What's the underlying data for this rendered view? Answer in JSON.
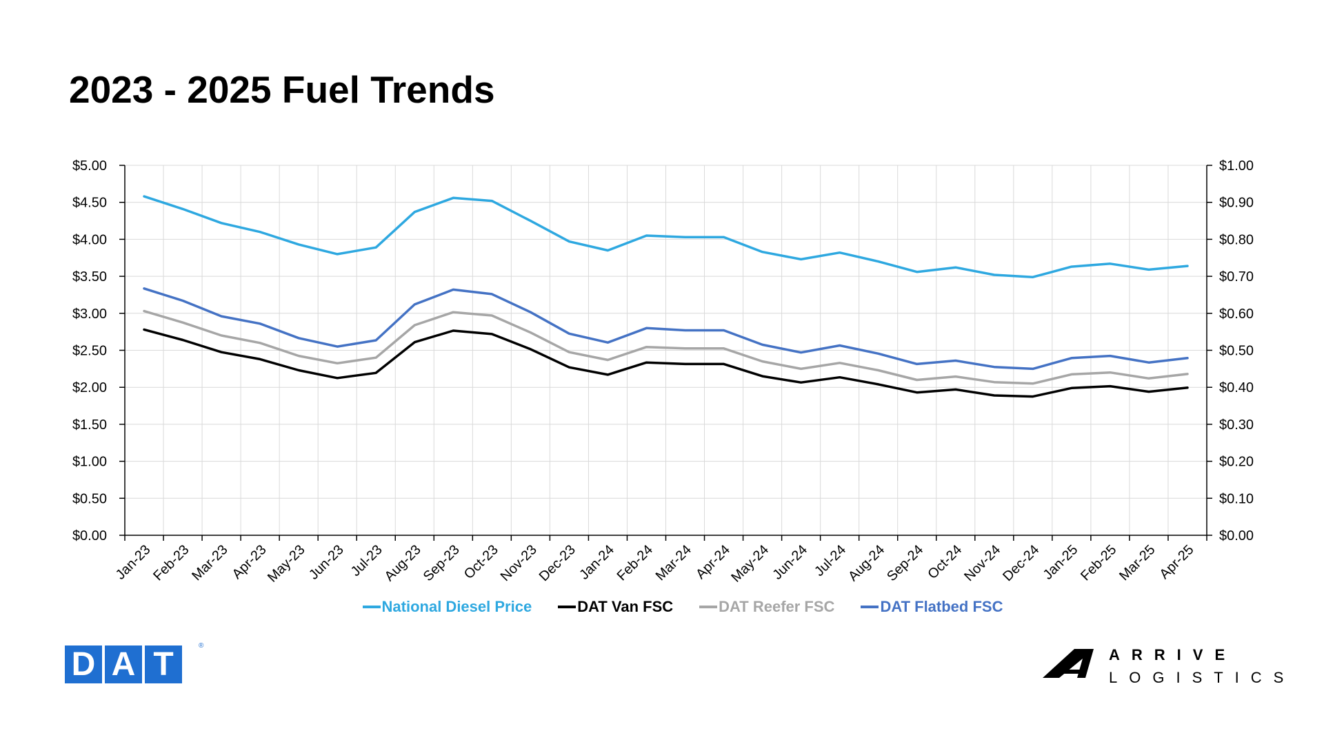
{
  "title": "2023 - 2025 Fuel Trends",
  "colors": {
    "diesel": "#2ea8e0",
    "van": "#000000",
    "reefer": "#a6a6a6",
    "flatbed": "#4472c4",
    "dat_blue": "#1f6fd1",
    "grid": "#d9d9d9"
  },
  "chart_data": {
    "type": "line",
    "title": "2023 - 2025 Fuel Trends",
    "categories": [
      "Jan-23",
      "Feb-23",
      "Mar-23",
      "Apr-23",
      "May-23",
      "Jun-23",
      "Jul-23",
      "Aug-23",
      "Sep-23",
      "Oct-23",
      "Nov-23",
      "Dec-23",
      "Jan-24",
      "Feb-24",
      "Mar-24",
      "Apr-24",
      "May-24",
      "Jun-24",
      "Jul-24",
      "Aug-24",
      "Sep-24",
      "Oct-24",
      "Nov-24",
      "Dec-24",
      "Jan-25",
      "Feb-25",
      "Mar-25",
      "Apr-25"
    ],
    "y_left": {
      "min": 0,
      "max": 5,
      "ticks": [
        "$0.00",
        "$0.50",
        "$1.00",
        "$1.50",
        "$2.00",
        "$2.50",
        "$3.00",
        "$3.50",
        "$4.00",
        "$4.50",
        "$5.00"
      ]
    },
    "y_right": {
      "min": 0,
      "max": 1,
      "ticks": [
        "$0.00",
        "$0.10",
        "$0.20",
        "$0.30",
        "$0.40",
        "$0.50",
        "$0.60",
        "$0.70",
        "$0.80",
        "$0.90",
        "$1.00"
      ]
    },
    "grid": true,
    "legend_position": "bottom",
    "series": [
      {
        "name": "National Diesel Price",
        "axis": "left",
        "color": "#2ea8e0",
        "values": [
          4.58,
          4.41,
          4.22,
          4.1,
          3.93,
          3.8,
          3.89,
          4.37,
          4.56,
          4.52,
          4.25,
          3.97,
          3.85,
          4.05,
          4.03,
          4.03,
          3.83,
          3.73,
          3.82,
          3.7,
          3.56,
          3.62,
          3.52,
          3.49,
          3.63,
          3.67,
          3.59,
          3.64
        ]
      },
      {
        "name": "DAT Van FSC",
        "axis": "right",
        "color": "#000000",
        "values": [
          0.556,
          0.528,
          0.495,
          0.476,
          0.446,
          0.425,
          0.439,
          0.522,
          0.553,
          0.544,
          0.503,
          0.454,
          0.434,
          0.467,
          0.463,
          0.463,
          0.43,
          0.413,
          0.427,
          0.408,
          0.386,
          0.394,
          0.378,
          0.375,
          0.398,
          0.403,
          0.388,
          0.399
        ]
      },
      {
        "name": "DAT Reefer FSC",
        "axis": "right",
        "color": "#a6a6a6",
        "values": [
          0.606,
          0.575,
          0.54,
          0.52,
          0.485,
          0.465,
          0.48,
          0.568,
          0.603,
          0.594,
          0.548,
          0.495,
          0.474,
          0.509,
          0.505,
          0.505,
          0.47,
          0.45,
          0.466,
          0.446,
          0.42,
          0.429,
          0.414,
          0.41,
          0.435,
          0.44,
          0.424,
          0.436
        ]
      },
      {
        "name": "DAT Flatbed FSC",
        "axis": "right",
        "color": "#4472c4",
        "values": [
          0.667,
          0.634,
          0.592,
          0.572,
          0.533,
          0.51,
          0.527,
          0.624,
          0.664,
          0.652,
          0.603,
          0.545,
          0.521,
          0.56,
          0.554,
          0.554,
          0.515,
          0.494,
          0.513,
          0.491,
          0.463,
          0.472,
          0.455,
          0.45,
          0.479,
          0.485,
          0.467,
          0.479
        ]
      }
    ]
  },
  "logos": {
    "dat": [
      "D",
      "A",
      "T"
    ],
    "dat_reg": "®",
    "arrive_line1": "ARRIVE",
    "arrive_line2": "LOGISTICS"
  }
}
